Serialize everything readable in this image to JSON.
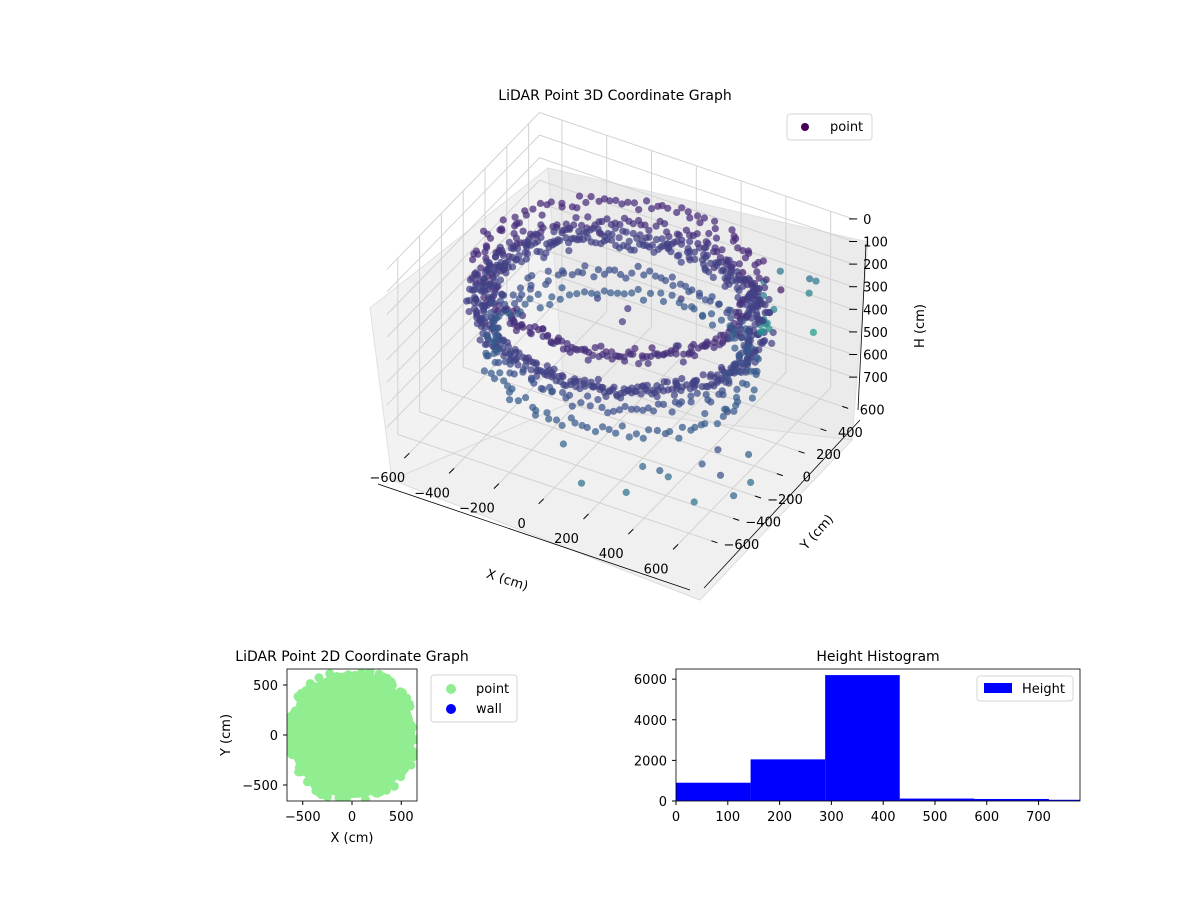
{
  "chart_data": [
    {
      "type": "scatter",
      "projection": "3d",
      "title": "LiDAR Point 3D Coordinate Graph",
      "xlabel": "X (cm)",
      "ylabel": "Y (cm)",
      "zlabel": "H (cm)",
      "xlim": [
        -700,
        700
      ],
      "ylim": [
        -700,
        700
      ],
      "zlim": [
        0,
        780
      ],
      "zaxis_inverted": true,
      "xticks": [
        "-600",
        "-400",
        "-200",
        "0",
        "200",
        "400",
        "600"
      ],
      "yticks": [
        "-600",
        "-400",
        "-200",
        "0",
        "200",
        "400",
        "600"
      ],
      "zticks": [
        "0",
        "100",
        "200",
        "300",
        "400",
        "500",
        "600",
        "700"
      ],
      "grid": true,
      "legend": {
        "position": "top-right",
        "entries": [
          {
            "label": "point",
            "color": "#440154"
          }
        ]
      },
      "colormap": "viridis",
      "series": [
        {
          "name": "point",
          "description_rings": [
            {
              "shape": "ring",
              "radius": 600,
              "height": 300,
              "count": 260
            },
            {
              "shape": "ring",
              "radius": 560,
              "height": 320,
              "count": 220
            },
            {
              "shape": "ring",
              "radius": 520,
              "height": 200,
              "count": 180
            },
            {
              "shape": "ring",
              "radius": 580,
              "height": 150,
              "count": 150
            },
            {
              "shape": "ring",
              "radius": 520,
              "height": 420,
              "count": 140
            },
            {
              "shape": "ring",
              "radius": 540,
              "height": 520,
              "count": 120
            }
          ],
          "points": [
            [
              -150,
              120,
              60
            ],
            [
              40,
              -60,
              300
            ],
            [
              -120,
              40,
              300
            ],
            [
              30,
              10,
              280
            ],
            [
              200,
              150,
              250
            ],
            [
              300,
              -100,
              300
            ],
            [
              100,
              240,
              100
            ],
            [
              260,
              330,
              180
            ],
            [
              360,
              240,
              160
            ],
            [
              460,
              180,
              60
            ],
            [
              480,
              340,
              200
            ],
            [
              560,
              320,
              90
            ],
            [
              560,
              260,
              230
            ],
            [
              600,
              140,
              170
            ],
            [
              640,
              420,
              210
            ],
            [
              690,
              380,
              120
            ],
            [
              720,
              260,
              40
            ],
            [
              660,
              120,
              40
            ],
            [
              300,
              -560,
              720
            ],
            [
              120,
              -600,
              720
            ],
            [
              330,
              -470,
              640
            ],
            [
              700,
              -240,
              700
            ],
            [
              760,
              -520,
              600
            ],
            [
              760,
              -640,
              450
            ],
            [
              690,
              -520,
              420
            ],
            [
              720,
              -300,
              540
            ],
            [
              -100,
              -420,
              480
            ],
            [
              20,
              -560,
              600
            ],
            [
              460,
              -580,
              560
            ],
            [
              420,
              -420,
              680
            ],
            [
              560,
              -470,
              720
            ],
            [
              620,
              500,
              430
            ],
            [
              650,
              -350,
              350
            ],
            [
              610,
              -500,
              520
            ]
          ]
        }
      ]
    },
    {
      "type": "scatter",
      "title": "LiDAR Point 2D Coordinate Graph",
      "xlabel": "X (cm)",
      "ylabel": "Y (cm)",
      "xlim": [
        -660,
        660
      ],
      "ylim": [
        -660,
        660
      ],
      "xticks": [
        "−500",
        "0",
        "500"
      ],
      "yticks": [
        "−500",
        "0",
        "500"
      ],
      "legend": {
        "position": "outside-right",
        "entries": [
          {
            "label": "point",
            "color": "#90ee90"
          },
          {
            "label": "wall",
            "color": "#0000ff"
          }
        ]
      },
      "series": [
        {
          "name": "point",
          "color": "#90ee90",
          "shape": "filled-disk",
          "radius": 640
        },
        {
          "name": "wall",
          "color": "#0000ff",
          "values": []
        }
      ]
    },
    {
      "type": "bar",
      "subtype": "histogram",
      "title": "Height Histogram",
      "xlabel": "",
      "ylabel": "",
      "xlim": [
        0,
        780
      ],
      "ylim": [
        0,
        6500
      ],
      "xticks": [
        "0",
        "100",
        "200",
        "300",
        "400",
        "500",
        "600",
        "700"
      ],
      "yticks": [
        "0",
        "2000",
        "4000",
        "6000"
      ],
      "legend": {
        "position": "top-right",
        "entries": [
          {
            "label": "Height",
            "color": "#0000ff"
          }
        ]
      },
      "bins": [
        {
          "start": 0,
          "end": 144,
          "count": 900
        },
        {
          "start": 144,
          "end": 288,
          "count": 2050
        },
        {
          "start": 288,
          "end": 432,
          "count": 6200
        },
        {
          "start": 432,
          "end": 576,
          "count": 120
        },
        {
          "start": 576,
          "end": 720,
          "count": 100
        },
        {
          "start": 720,
          "end": 780,
          "count": 60
        }
      ],
      "color": "#0000ff"
    }
  ]
}
